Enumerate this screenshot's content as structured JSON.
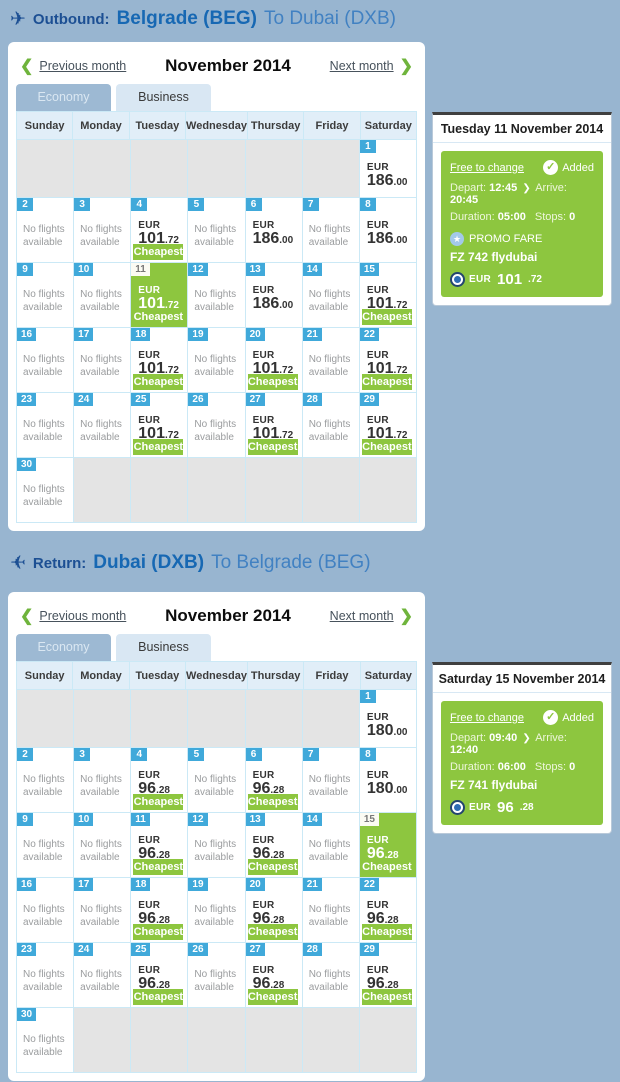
{
  "page": {
    "background": "#98b5d0",
    "accent_green": "#8dc63f",
    "badge_blue": "#40a9da"
  },
  "outbound": {
    "plane_icon": "plane-right-icon",
    "direction_label": "Outbound:",
    "route_primary": "Belgrade (BEG)",
    "route_secondary": "To Dubai (DXB)",
    "calendar": {
      "prev_label": "Previous month",
      "month_title": "November 2014",
      "next_label": "Next month",
      "tabs": [
        {
          "label": "Economy",
          "active": true
        },
        {
          "label": "Business",
          "active": false
        }
      ],
      "day_headers": [
        "Sunday",
        "Monday",
        "Tuesday",
        "Wednesday",
        "Thursday",
        "Friday",
        "Saturday"
      ],
      "no_flights_text": "No flights available",
      "cheapest_label": "Cheapest",
      "currency": "EUR",
      "weeks": [
        [
          {
            "empty": true
          },
          {
            "empty": true
          },
          {
            "empty": true
          },
          {
            "empty": true
          },
          {
            "empty": true
          },
          {
            "empty": true
          },
          {
            "day": 1,
            "price": "186",
            "cents": ".00"
          }
        ],
        [
          {
            "day": 2,
            "no_flights": true
          },
          {
            "day": 3,
            "no_flights": true
          },
          {
            "day": 4,
            "price": "101",
            "cents": ".72",
            "cheapest": true
          },
          {
            "day": 5,
            "no_flights": true
          },
          {
            "day": 6,
            "price": "186",
            "cents": ".00"
          },
          {
            "day": 7,
            "no_flights": true
          },
          {
            "day": 8,
            "price": "186",
            "cents": ".00"
          }
        ],
        [
          {
            "day": 9,
            "no_flights": true
          },
          {
            "day": 10,
            "no_flights": true
          },
          {
            "day": 11,
            "price": "101",
            "cents": ".72",
            "cheapest": true,
            "selected": true
          },
          {
            "day": 12,
            "no_flights": true
          },
          {
            "day": 13,
            "price": "186",
            "cents": ".00"
          },
          {
            "day": 14,
            "no_flights": true
          },
          {
            "day": 15,
            "price": "101",
            "cents": ".72",
            "cheapest": true
          }
        ],
        [
          {
            "day": 16,
            "no_flights": true
          },
          {
            "day": 17,
            "no_flights": true
          },
          {
            "day": 18,
            "price": "101",
            "cents": ".72",
            "cheapest": true
          },
          {
            "day": 19,
            "no_flights": true
          },
          {
            "day": 20,
            "price": "101",
            "cents": ".72",
            "cheapest": true
          },
          {
            "day": 21,
            "no_flights": true
          },
          {
            "day": 22,
            "price": "101",
            "cents": ".72",
            "cheapest": true
          }
        ],
        [
          {
            "day": 23,
            "no_flights": true
          },
          {
            "day": 24,
            "no_flights": true
          },
          {
            "day": 25,
            "price": "101",
            "cents": ".72",
            "cheapest": true
          },
          {
            "day": 26,
            "no_flights": true
          },
          {
            "day": 27,
            "price": "101",
            "cents": ".72",
            "cheapest": true
          },
          {
            "day": 28,
            "no_flights": true
          },
          {
            "day": 29,
            "price": "101",
            "cents": ".72",
            "cheapest": true
          }
        ],
        [
          {
            "day": 30,
            "no_flights": true
          },
          {
            "empty": true
          },
          {
            "empty": true
          },
          {
            "empty": true
          },
          {
            "empty": true
          },
          {
            "empty": true
          },
          {
            "empty": true
          }
        ]
      ]
    },
    "details": {
      "title": "Tuesday 11 November 2014",
      "free_to_change_label": "Free to change",
      "added_label": "Added",
      "depart_label": "Depart:",
      "depart_time": "12:45",
      "arrive_label": "Arrive:",
      "arrive_time": "20:45",
      "duration_label": "Duration:",
      "duration_value": "05:00",
      "stops_label": "Stops:",
      "stops_value": "0",
      "promo_label": "PROMO FARE",
      "flight_label": "FZ 742 flydubai",
      "currency": "EUR",
      "price_main": "101",
      "price_cents": ".72"
    }
  },
  "return": {
    "plane_icon": "plane-left-icon",
    "direction_label": "Return:",
    "route_primary": "Dubai (DXB)",
    "route_secondary": "To Belgrade (BEG)",
    "calendar": {
      "prev_label": "Previous month",
      "month_title": "November 2014",
      "next_label": "Next month",
      "tabs": [
        {
          "label": "Economy",
          "active": true
        },
        {
          "label": "Business",
          "active": false
        }
      ],
      "day_headers": [
        "Sunday",
        "Monday",
        "Tuesday",
        "Wednesday",
        "Thursday",
        "Friday",
        "Saturday"
      ],
      "no_flights_text": "No flights available",
      "cheapest_label": "Cheapest",
      "currency": "EUR",
      "weeks": [
        [
          {
            "empty": true
          },
          {
            "empty": true
          },
          {
            "empty": true
          },
          {
            "empty": true
          },
          {
            "empty": true
          },
          {
            "empty": true
          },
          {
            "day": 1,
            "price": "180",
            "cents": ".00"
          }
        ],
        [
          {
            "day": 2,
            "no_flights": true
          },
          {
            "day": 3,
            "no_flights": true
          },
          {
            "day": 4,
            "price": "96",
            "cents": ".28",
            "cheapest": true
          },
          {
            "day": 5,
            "no_flights": true
          },
          {
            "day": 6,
            "price": "96",
            "cents": ".28",
            "cheapest": true
          },
          {
            "day": 7,
            "no_flights": true
          },
          {
            "day": 8,
            "price": "180",
            "cents": ".00"
          }
        ],
        [
          {
            "day": 9,
            "no_flights": true
          },
          {
            "day": 10,
            "no_flights": true
          },
          {
            "day": 11,
            "price": "96",
            "cents": ".28",
            "cheapest": true
          },
          {
            "day": 12,
            "no_flights": true
          },
          {
            "day": 13,
            "price": "96",
            "cents": ".28",
            "cheapest": true
          },
          {
            "day": 14,
            "no_flights": true
          },
          {
            "day": 15,
            "price": "96",
            "cents": ".28",
            "cheapest": true,
            "selected": true
          }
        ],
        [
          {
            "day": 16,
            "no_flights": true
          },
          {
            "day": 17,
            "no_flights": true
          },
          {
            "day": 18,
            "price": "96",
            "cents": ".28",
            "cheapest": true
          },
          {
            "day": 19,
            "no_flights": true
          },
          {
            "day": 20,
            "price": "96",
            "cents": ".28",
            "cheapest": true
          },
          {
            "day": 21,
            "no_flights": true
          },
          {
            "day": 22,
            "price": "96",
            "cents": ".28",
            "cheapest": true
          }
        ],
        [
          {
            "day": 23,
            "no_flights": true
          },
          {
            "day": 24,
            "no_flights": true
          },
          {
            "day": 25,
            "price": "96",
            "cents": ".28",
            "cheapest": true
          },
          {
            "day": 26,
            "no_flights": true
          },
          {
            "day": 27,
            "price": "96",
            "cents": ".28",
            "cheapest": true
          },
          {
            "day": 28,
            "no_flights": true
          },
          {
            "day": 29,
            "price": "96",
            "cents": ".28",
            "cheapest": true
          }
        ],
        [
          {
            "day": 30,
            "no_flights": true
          },
          {
            "empty": true
          },
          {
            "empty": true
          },
          {
            "empty": true
          },
          {
            "empty": true
          },
          {
            "empty": true
          },
          {
            "empty": true
          }
        ]
      ]
    },
    "details": {
      "title": "Saturday 15 November 2014",
      "free_to_change_label": "Free to change",
      "added_label": "Added",
      "depart_label": "Depart:",
      "depart_time": "09:40",
      "arrive_label": "Arrive:",
      "arrive_time": "12:40",
      "duration_label": "Duration:",
      "duration_value": "06:00",
      "stops_label": "Stops:",
      "stops_value": "0",
      "flight_label": "FZ 741 flydubai",
      "currency": "EUR",
      "price_main": "96",
      "price_cents": ".28"
    }
  }
}
